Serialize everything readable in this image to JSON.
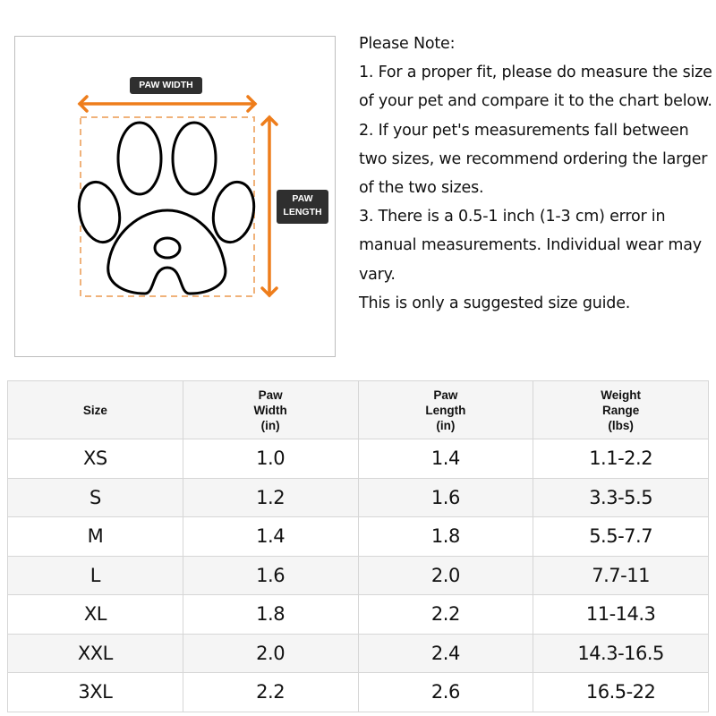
{
  "figure": {
    "paw_width_label": "PAW WIDTH",
    "paw_length_label_line1": "PAW",
    "paw_length_label_line2": "LENGTH",
    "accent_color": "#ee7d1b",
    "icons": [
      "paw-outline-icon",
      "horizontal-arrow-icon",
      "vertical-arrow-icon"
    ]
  },
  "note": {
    "lines": [
      "Please Note:",
      "1. For a proper fit, please do measure the size of your pet and compare it to the chart below.",
      "2. If your pet's measurements fall between two sizes, we recommend ordering the larger of the two sizes.",
      "3. There is a 0.5-1 inch (1-3 cm) error in manual measurements. Individual wear may vary.",
      "This is only a suggested size guide."
    ]
  },
  "table": {
    "headers": [
      [
        "Size"
      ],
      [
        "Paw",
        "Width",
        "(in)"
      ],
      [
        "Paw",
        "Length",
        "(in)"
      ],
      [
        "Weight",
        "Range",
        "(lbs)"
      ]
    ],
    "rows": [
      [
        "XS",
        "1.0",
        "1.4",
        "1.1-2.2"
      ],
      [
        "S",
        "1.2",
        "1.6",
        "3.3-5.5"
      ],
      [
        "M",
        "1.4",
        "1.8",
        "5.5-7.7"
      ],
      [
        "L",
        "1.6",
        "2.0",
        "7.7-11"
      ],
      [
        "XL",
        "1.8",
        "2.2",
        "11-14.3"
      ],
      [
        "XXL",
        "2.0",
        "2.4",
        "14.3-16.5"
      ],
      [
        "3XL",
        "2.2",
        "2.6",
        "16.5-22"
      ]
    ]
  }
}
